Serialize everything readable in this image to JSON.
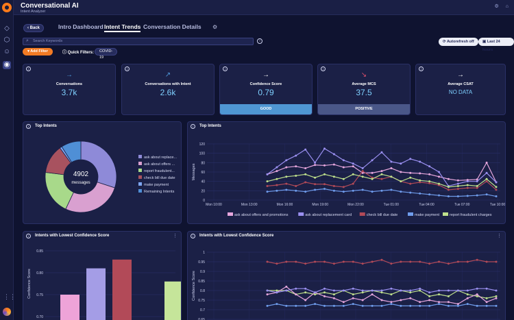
{
  "app": {
    "title": "Conversational AI",
    "subtitle": "Intent Analyzer"
  },
  "nav": {
    "back": "Back",
    "tabs": [
      {
        "label": "Intro Dashboard"
      },
      {
        "label": "Intent Trends"
      },
      {
        "label": "Conversation Details"
      }
    ],
    "active_tab": "Intent Trends"
  },
  "search": {
    "placeholder": "Search Keywords"
  },
  "toolbar": {
    "autorefresh": "Autorefresh off",
    "time_range": "Last 24 hours"
  },
  "filters": {
    "add_filter": "Add Filter",
    "quick_filters_label": "Quick Filters:",
    "chips": [
      "COVID-19"
    ]
  },
  "kpis": [
    {
      "label": "Conversations",
      "value": "3.7k",
      "arrow": "→",
      "arrow_color": "#4f9bde",
      "status": ""
    },
    {
      "label": "Conversations with Intent",
      "value": "2.6k",
      "arrow": "↗",
      "arrow_color": "#4f9bde",
      "status": ""
    },
    {
      "label": "Confidence Score",
      "value": "0.79",
      "arrow": "→",
      "arrow_color": "#ffffff",
      "status": "GOOD"
    },
    {
      "label": "Average MCS",
      "value": "37.5",
      "arrow": "↘",
      "arrow_color": "#e0506d",
      "status": "POSITIVE"
    },
    {
      "label": "Average CSAT",
      "value": "NO DATA",
      "arrow": "→",
      "arrow_color": "#ffffff",
      "status": ""
    }
  ],
  "top_intents_donut": {
    "title": "Top Intents",
    "center_value": "4902",
    "center_label": "messages",
    "legend": [
      {
        "label": "ask about replace...",
        "color": "#8e8ad8"
      },
      {
        "label": "ask about offers ...",
        "color": "#d9a0d0"
      },
      {
        "label": "report fraudulent...",
        "color": "#a8d98a"
      },
      {
        "label": "check bill due date",
        "color": "#a8525f"
      },
      {
        "label": "make payment",
        "color": "#7ea6f0"
      },
      {
        "label": "Remaining Intents",
        "color": "#4f8fd6"
      }
    ]
  },
  "top_intents_line_card": {
    "title": "Top Intents"
  },
  "low_conf_bar_card": {
    "title": "Intents with Lowest Confidence Score"
  },
  "low_conf_line_card": {
    "title": "Intents with Lowest Confidence Score"
  },
  "chart_data": [
    {
      "type": "pie",
      "title": "Top Intents",
      "labels": [
        "ask about replace...",
        "ask about offers ...",
        "report fraudulent...",
        "check bill due date",
        "make payment",
        "Remaining Intents"
      ],
      "values": [
        30,
        27,
        20,
        13,
        1,
        9
      ],
      "center_value": "4902",
      "center_label": "messages"
    },
    {
      "type": "line",
      "title": "Top Intents",
      "ylabel": "Messages",
      "ylim": [
        0,
        120
      ],
      "yticks": [
        0,
        20,
        40,
        60,
        80,
        100,
        120
      ],
      "xticks": [
        "Mon 10:00",
        "Mon 13:00",
        "Mon 16:00",
        "Mon 19:00",
        "Mon 22:00",
        "Tue 01:00",
        "Tue 04:00",
        "Tue 07:00",
        "Tue 10:00"
      ],
      "grid": true,
      "legend_position": "bottom",
      "series": [
        {
          "name": "ask about offers and promotions",
          "color": "#e6a6dd",
          "values": [
            55,
            62,
            70,
            72,
            68,
            75,
            74,
            76,
            70,
            72,
            58,
            58,
            62,
            68,
            60,
            58,
            57,
            55,
            50,
            45,
            42,
            43,
            44,
            80,
            38
          ]
        },
        {
          "name": "ask about replacement card",
          "color": "#9a8ff0",
          "values": [
            55,
            70,
            85,
            95,
            108,
            80,
            110,
            98,
            85,
            78,
            68,
            85,
            102,
            82,
            78,
            88,
            82,
            72,
            60,
            30,
            35,
            40,
            40,
            58,
            38
          ]
        },
        {
          "name": "check bill due date",
          "color": "#b24a58",
          "values": [
            30,
            32,
            35,
            30,
            38,
            34,
            34,
            30,
            28,
            35,
            62,
            48,
            45,
            50,
            40,
            35,
            38,
            36,
            32,
            22,
            24,
            26,
            26,
            40,
            22
          ]
        },
        {
          "name": "make payment",
          "color": "#6f9cec",
          "values": [
            18,
            20,
            22,
            20,
            18,
            22,
            24,
            20,
            18,
            20,
            22,
            18,
            20,
            22,
            18,
            16,
            14,
            12,
            10,
            8,
            8,
            9,
            10,
            12,
            8
          ]
        },
        {
          "name": "report fraudulent charges",
          "color": "#bfe08c",
          "values": [
            40,
            45,
            50,
            52,
            55,
            48,
            55,
            50,
            45,
            55,
            50,
            45,
            55,
            50,
            40,
            48,
            42,
            40,
            35,
            28,
            30,
            32,
            30,
            45,
            28
          ]
        }
      ]
    },
    {
      "type": "bar",
      "title": "Intents with Lowest Confidence Score",
      "ylabel": "Confidence Score",
      "ylim": [
        0.7,
        0.85
      ],
      "yticks": [
        0.7,
        0.75,
        0.8,
        0.85
      ],
      "grid": true,
      "values": [
        0.75,
        0.81,
        0.83,
        0.78
      ],
      "colors": [
        "#eea3d8",
        "#a49de6",
        "#b24a58",
        "#c5e59a"
      ]
    },
    {
      "type": "line",
      "title": "Intents with Lowest Confidence Score",
      "ylabel": "Confidence Score",
      "ylim": [
        0.65,
        1
      ],
      "yticks": [
        0.65,
        0.7,
        0.75,
        0.8,
        0.85,
        0.9,
        0.95,
        1
      ],
      "xticks": [
        "Mon 10:00",
        "Mon 13:00",
        "Mon 16:00",
        "Mon 19:00",
        "Mon 22:00",
        "Tue 01:00",
        "Tue 04:00",
        "Tue 07:00",
        "Tue 10:00"
      ],
      "grid": true,
      "series": [
        {
          "color": "#b24a58",
          "values": [
            0.95,
            0.94,
            0.95,
            0.95,
            0.94,
            0.95,
            0.95,
            0.94,
            0.95,
            0.95,
            0.94,
            0.95,
            0.96,
            0.94,
            0.95,
            0.95,
            0.95,
            0.94,
            0.95,
            0.94,
            0.95,
            0.95,
            0.96,
            0.95,
            0.95
          ]
        },
        {
          "color": "#bfe08c",
          "values": [
            0.8,
            0.8,
            0.8,
            0.78,
            0.79,
            0.78,
            0.79,
            0.78,
            0.8,
            0.78,
            0.79,
            0.8,
            0.79,
            0.78,
            0.8,
            0.79,
            0.8,
            0.77,
            0.78,
            0.77,
            0.8,
            0.78,
            0.77,
            0.76,
            0.77
          ]
        },
        {
          "color": "#e6a6dd",
          "values": [
            0.78,
            0.79,
            0.82,
            0.78,
            0.75,
            0.79,
            0.77,
            0.76,
            0.74,
            0.76,
            0.75,
            0.78,
            0.75,
            0.74,
            0.75,
            0.76,
            0.74,
            0.75,
            0.74,
            0.74,
            0.73,
            0.76,
            0.78,
            0.74,
            0.76
          ]
        },
        {
          "color": "#9a8ff0",
          "values": [
            0.8,
            0.79,
            0.8,
            0.81,
            0.81,
            0.79,
            0.81,
            0.8,
            0.8,
            0.81,
            0.8,
            0.8,
            0.8,
            0.81,
            0.8,
            0.8,
            0.81,
            0.79,
            0.8,
            0.8,
            0.8,
            0.8,
            0.81,
            0.81,
            0.8
          ]
        },
        {
          "color": "#6f9cec",
          "values": [
            0.72,
            0.73,
            0.72,
            0.72,
            0.72,
            0.73,
            0.72,
            0.72,
            0.72,
            0.73,
            0.72,
            0.72,
            0.72,
            0.73,
            0.72,
            0.72,
            0.72,
            0.72,
            0.73,
            0.72,
            0.72,
            0.73,
            0.72,
            0.72,
            0.72
          ]
        }
      ]
    }
  ]
}
